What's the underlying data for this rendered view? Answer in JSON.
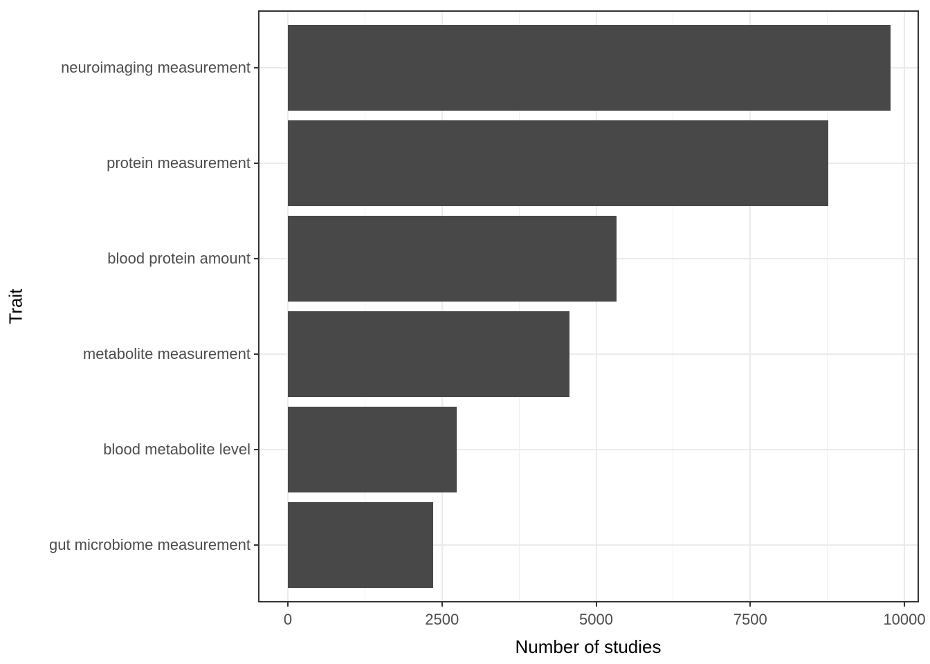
{
  "chart_data": {
    "type": "bar",
    "orientation": "horizontal",
    "title": "",
    "xlabel": "Number of studies",
    "ylabel": "Trait",
    "categories": [
      "neuroimaging measurement",
      "protein measurement",
      "blood protein amount",
      "metabolite measurement",
      "blood metabolite level",
      "gut microbiome measurement"
    ],
    "values": [
      9780,
      8760,
      5330,
      4570,
      2740,
      2360
    ],
    "x_major_ticks": [
      "0",
      "2500",
      "5000",
      "7500",
      "10000"
    ],
    "x_major_tick_values": [
      0,
      2500,
      5000,
      7500,
      10000
    ],
    "x_minor_gridline_values": [
      1250,
      3750,
      6250,
      8750
    ],
    "xlim": [
      0,
      10000
    ],
    "grid": "vertical major + minor, horizontal major at category centers",
    "legend_position": "none",
    "bar_width_fraction": 0.9,
    "colors": {
      "bar_fill": "#484848",
      "grid_major": "#EBEBEB",
      "grid_minor": "#F0F0F0",
      "panel_border": "#333333",
      "tick_mark": "#333333",
      "axis_text": "#4D4D4D",
      "axis_title": "#000000",
      "background": "#FFFFFF"
    }
  }
}
